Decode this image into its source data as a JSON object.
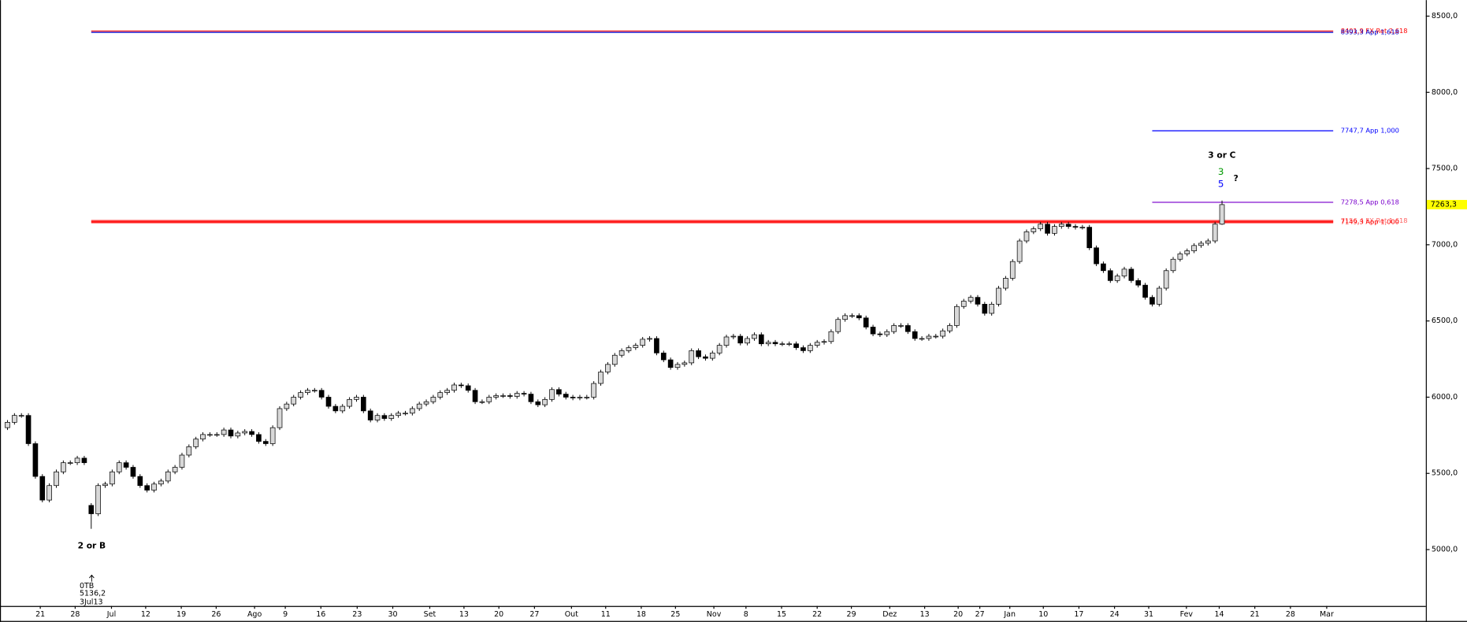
{
  "chart_data": {
    "type": "candlestick",
    "opens": [
      5800,
      5835,
      5880,
      5880,
      5695,
      5480,
      5325,
      5420,
      5510,
      5570,
      5570,
      5600,
      5290,
      5235,
      5420,
      5430,
      5510,
      5570,
      5540,
      5480,
      5420,
      5390,
      5430,
      5450,
      5510,
      5540,
      5620,
      5675,
      5725,
      5755,
      5755,
      5755,
      5785,
      5745,
      5765,
      5775,
      5755,
      5710,
      5695,
      5800,
      5925,
      5955,
      6000,
      6030,
      6045,
      6045,
      6000,
      5940,
      5910,
      5940,
      5985,
      6000,
      5910,
      5850,
      5880,
      5860,
      5880,
      5895,
      5895,
      5925,
      5955,
      5970,
      6000,
      6030,
      6045,
      6080,
      6075,
      6045,
      5970,
      5970,
      6000,
      6010,
      6010,
      6005,
      6025,
      6020,
      5970,
      5950,
      5985,
      6050,
      6020,
      6000,
      5995,
      6000,
      6000,
      6090,
      6165,
      6215,
      6275,
      6305,
      6325,
      6340,
      6380,
      6385,
      6290,
      6245,
      6195,
      6215,
      6225,
      6305,
      6265,
      6255,
      6290,
      6340,
      6395,
      6400,
      6355,
      6385,
      6410,
      6350,
      6360,
      6350,
      6350,
      6350,
      6325,
      6305,
      6340,
      6360,
      6365,
      6430,
      6510,
      6535,
      6535,
      6520,
      6460,
      6415,
      6410,
      6430,
      6470,
      6470,
      6430,
      6385,
      6385,
      6400,
      6400,
      6435,
      6470,
      6595,
      6630,
      6655,
      6610,
      6550,
      6610,
      6715,
      6780,
      6890,
      7025,
      7085,
      7105,
      7135,
      7075,
      7120,
      7135,
      7120,
      7115,
      7115,
      6980,
      6875,
      6830,
      6765,
      6795,
      6840,
      6765,
      6735,
      6655,
      6610,
      6715,
      6830,
      6905,
      6940,
      6960,
      6995,
      7010,
      7025,
      7135
    ],
    "highs": [
      5850,
      5895,
      5895,
      5895,
      5710,
      5495,
      5435,
      5525,
      5585,
      5585,
      5615,
      5615,
      5305,
      5435,
      5445,
      5525,
      5585,
      5585,
      5555,
      5495,
      5435,
      5445,
      5465,
      5525,
      5555,
      5635,
      5690,
      5740,
      5770,
      5770,
      5770,
      5800,
      5800,
      5780,
      5790,
      5790,
      5770,
      5725,
      5815,
      5940,
      5970,
      6015,
      6045,
      6060,
      6060,
      6060,
      6015,
      5955,
      5955,
      6000,
      6015,
      6015,
      5925,
      5895,
      5895,
      5895,
      5910,
      5910,
      5940,
      5970,
      5985,
      6015,
      6045,
      6060,
      6095,
      6095,
      6090,
      6060,
      5985,
      6015,
      6025,
      6025,
      6025,
      6040,
      6040,
      6035,
      5985,
      6000,
      6065,
      6065,
      6035,
      6015,
      6015,
      6015,
      6105,
      6180,
      6230,
      6290,
      6320,
      6340,
      6355,
      6395,
      6400,
      6400,
      6305,
      6260,
      6230,
      6240,
      6320,
      6320,
      6280,
      6305,
      6355,
      6410,
      6415,
      6415,
      6400,
      6425,
      6425,
      6375,
      6375,
      6365,
      6365,
      6365,
      6340,
      6355,
      6375,
      6380,
      6445,
      6525,
      6550,
      6550,
      6550,
      6535,
      6475,
      6430,
      6445,
      6485,
      6485,
      6485,
      6445,
      6400,
      6415,
      6415,
      6450,
      6485,
      6610,
      6645,
      6670,
      6670,
      6625,
      6625,
      6730,
      6795,
      6905,
      7040,
      7100,
      7120,
      7150,
      7150,
      7135,
      7150,
      7150,
      7135,
      7130,
      7130,
      6995,
      6890,
      6845,
      6810,
      6855,
      6855,
      6780,
      6750,
      6670,
      6730,
      6845,
      6920,
      6955,
      6975,
      7010,
      7025,
      7040,
      7150,
      7290
    ],
    "lows": [
      5785,
      5820,
      5865,
      5680,
      5465,
      5310,
      5310,
      5405,
      5495,
      5555,
      5555,
      5555,
      5136.2,
      5220,
      5405,
      5415,
      5495,
      5525,
      5465,
      5405,
      5375,
      5375,
      5415,
      5435,
      5495,
      5525,
      5605,
      5660,
      5710,
      5740,
      5740,
      5740,
      5730,
      5730,
      5750,
      5740,
      5695,
      5680,
      5680,
      5785,
      5910,
      5940,
      5985,
      6015,
      6030,
      5985,
      5925,
      5895,
      5895,
      5925,
      5970,
      5895,
      5835,
      5835,
      5845,
      5845,
      5865,
      5880,
      5880,
      5910,
      5940,
      5955,
      5985,
      6015,
      6030,
      6060,
      6030,
      5955,
      5955,
      5955,
      5985,
      5995,
      5990,
      5990,
      6005,
      5955,
      5935,
      5935,
      5970,
      6005,
      5985,
      5980,
      5980,
      5985,
      5985,
      6075,
      6150,
      6200,
      6260,
      6290,
      6310,
      6325,
      6365,
      6275,
      6230,
      6180,
      6180,
      6200,
      6210,
      6250,
      6240,
      6240,
      6275,
      6325,
      6380,
      6340,
      6340,
      6370,
      6335,
      6335,
      6335,
      6335,
      6335,
      6310,
      6290,
      6290,
      6325,
      6345,
      6350,
      6415,
      6495,
      6520,
      6505,
      6445,
      6400,
      6395,
      6395,
      6415,
      6455,
      6415,
      6370,
      6370,
      6370,
      6385,
      6385,
      6420,
      6455,
      6580,
      6615,
      6595,
      6535,
      6535,
      6595,
      6700,
      6765,
      6875,
      7010,
      7070,
      7090,
      7060,
      7060,
      7105,
      7105,
      7100,
      7100,
      6965,
      6860,
      6815,
      6750,
      6750,
      6780,
      6750,
      6720,
      6640,
      6595,
      6595,
      6700,
      6815,
      6890,
      6925,
      6945,
      6980,
      6995,
      7010,
      7130
    ],
    "closes": [
      5835,
      5880,
      5880,
      5695,
      5480,
      5325,
      5420,
      5510,
      5570,
      5570,
      5600,
      5570,
      5235,
      5420,
      5430,
      5510,
      5570,
      5540,
      5480,
      5420,
      5390,
      5430,
      5450,
      5510,
      5540,
      5620,
      5675,
      5725,
      5755,
      5755,
      5755,
      5785,
      5745,
      5765,
      5775,
      5755,
      5710,
      5695,
      5800,
      5925,
      5955,
      6000,
      6030,
      6045,
      6045,
      6000,
      5940,
      5910,
      5940,
      5985,
      6000,
      5910,
      5850,
      5880,
      5860,
      5880,
      5895,
      5895,
      5925,
      5955,
      5970,
      6000,
      6030,
      6045,
      6080,
      6075,
      6045,
      5970,
      5970,
      6000,
      6010,
      6010,
      6005,
      6025,
      6020,
      5970,
      5950,
      5985,
      6050,
      6020,
      6000,
      5995,
      6000,
      6000,
      6090,
      6165,
      6215,
      6275,
      6305,
      6325,
      6340,
      6380,
      6385,
      6290,
      6245,
      6195,
      6215,
      6225,
      6305,
      6265,
      6255,
      6290,
      6340,
      6395,
      6400,
      6355,
      6385,
      6410,
      6350,
      6360,
      6350,
      6350,
      6350,
      6325,
      6305,
      6340,
      6360,
      6365,
      6430,
      6510,
      6535,
      6535,
      6520,
      6460,
      6415,
      6410,
      6430,
      6470,
      6470,
      6430,
      6385,
      6385,
      6400,
      6400,
      6435,
      6470,
      6595,
      6630,
      6655,
      6610,
      6550,
      6610,
      6715,
      6780,
      6890,
      7025,
      7085,
      7105,
      7135,
      7075,
      7120,
      7135,
      7120,
      7115,
      7115,
      6980,
      6875,
      6830,
      6765,
      6795,
      6840,
      6765,
      6735,
      6655,
      6610,
      6715,
      6830,
      6905,
      6940,
      6960,
      6995,
      7010,
      7025,
      7135,
      7263.3
    ],
    "up_color": "#d8d8d8",
    "down_color": "#000000",
    "xlim": [
      -1.07,
      203.2
    ],
    "ylim": [
      4630,
      8605
    ],
    "yticks": [
      {
        "value": 5000,
        "label": "5000,0"
      },
      {
        "value": 5500,
        "label": "5500,0"
      },
      {
        "value": 6000,
        "label": "6000,0"
      },
      {
        "value": 6500,
        "label": "6500,0"
      },
      {
        "value": 7000,
        "label": "7000,0"
      },
      {
        "value": 7500,
        "label": "7500,0"
      },
      {
        "value": 8000,
        "label": "8000,0"
      },
      {
        "value": 8500,
        "label": "8500,0"
      }
    ],
    "xticks": [
      {
        "value": 4.7,
        "label": "21"
      },
      {
        "value": 9.7,
        "label": "28"
      },
      {
        "value": 14.9,
        "label": "Jul"
      },
      {
        "value": 19.8,
        "label": "12"
      },
      {
        "value": 24.9,
        "label": "19"
      },
      {
        "value": 29.9,
        "label": "26"
      },
      {
        "value": 35.4,
        "label": "Ago"
      },
      {
        "value": 39.8,
        "label": "9"
      },
      {
        "value": 44.9,
        "label": "16"
      },
      {
        "value": 50.1,
        "label": "23"
      },
      {
        "value": 55.2,
        "label": "30"
      },
      {
        "value": 60.5,
        "label": "Set"
      },
      {
        "value": 65.4,
        "label": "13"
      },
      {
        "value": 70.4,
        "label": "20"
      },
      {
        "value": 75.5,
        "label": "27"
      },
      {
        "value": 80.8,
        "label": "Out"
      },
      {
        "value": 85.7,
        "label": "11"
      },
      {
        "value": 90.8,
        "label": "18"
      },
      {
        "value": 95.7,
        "label": "25"
      },
      {
        "value": 101.2,
        "label": "Nov"
      },
      {
        "value": 105.8,
        "label": "8"
      },
      {
        "value": 110.9,
        "label": "15"
      },
      {
        "value": 116.0,
        "label": "22"
      },
      {
        "value": 120.9,
        "label": "29"
      },
      {
        "value": 126.4,
        "label": "Dez"
      },
      {
        "value": 131.4,
        "label": "13"
      },
      {
        "value": 136.2,
        "label": "20"
      },
      {
        "value": 139.3,
        "label": "27"
      },
      {
        "value": 143.6,
        "label": "Jan"
      },
      {
        "value": 148.4,
        "label": "10"
      },
      {
        "value": 153.5,
        "label": "17"
      },
      {
        "value": 158.6,
        "label": "24"
      },
      {
        "value": 163.5,
        "label": "31"
      },
      {
        "value": 168.9,
        "label": "Fev"
      },
      {
        "value": 173.6,
        "label": "14"
      },
      {
        "value": 178.7,
        "label": "21"
      },
      {
        "value": 183.8,
        "label": "28"
      },
      {
        "value": 189.0,
        "label": "Mar"
      }
    ],
    "levels": [
      {
        "label": "8401,9 FX Ret 2,618",
        "value": 8401.9,
        "color": "#ff0000",
        "start": 12
      },
      {
        "label": "8393,3 App 1,618",
        "value": 8393.3,
        "color": "#0000cc",
        "start": 12
      },
      {
        "label": "7747,7 App 1,000",
        "value": 7747.7,
        "color": "#0000ff",
        "start": 164
      },
      {
        "label": "7278,5 App 0,618",
        "value": 7278.5,
        "color": "#7a00cc",
        "start": 164
      },
      {
        "label": "7156,4 FX Ret 1,618",
        "value": 7156.4,
        "color": "#ff6060",
        "start": 12
      },
      {
        "label": "7149,3 App 1,000",
        "value": 7149.3,
        "color": "#ff0000",
        "start": 12
      }
    ],
    "last_price": {
      "value": 7263.3,
      "label": "7263,3",
      "color": "#ffff00"
    },
    "annotations": {
      "wave_top": "3 or C",
      "wave_3": "3",
      "wave_5": "5",
      "question": "?",
      "wave_b": "2 or B",
      "bottom_tag": "0TB",
      "bottom_value": "5136,2",
      "bottom_date": "3Jul13"
    }
  }
}
